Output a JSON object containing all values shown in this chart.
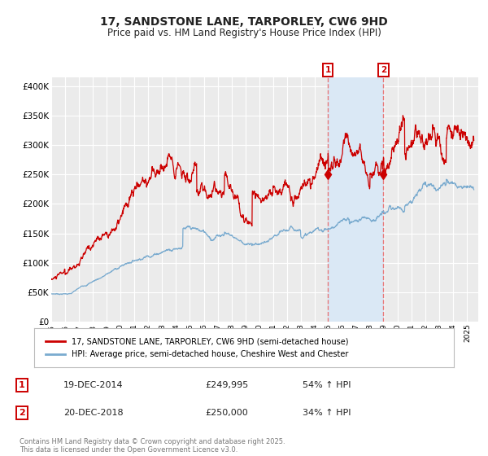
{
  "title": "17, SANDSTONE LANE, TARPORLEY, CW6 9HD",
  "subtitle": "Price paid vs. HM Land Registry's House Price Index (HPI)",
  "title_fontsize": 10,
  "subtitle_fontsize": 8.5,
  "ylabel_ticks": [
    "£0",
    "£50K",
    "£100K",
    "£150K",
    "£200K",
    "£250K",
    "£300K",
    "£350K",
    "£400K"
  ],
  "ytick_values": [
    0,
    50000,
    100000,
    150000,
    200000,
    250000,
    300000,
    350000,
    400000
  ],
  "ylim": [
    0,
    415000
  ],
  "xlim_start": 1995.0,
  "xlim_end": 2025.8,
  "background_color": "#ffffff",
  "plot_bg_color": "#ebebeb",
  "grid_color": "#ffffff",
  "red_line_color": "#cc0000",
  "blue_line_color": "#7aabcf",
  "sale1_date_num": 2014.96,
  "sale1_price": 249995,
  "sale2_date_num": 2018.96,
  "sale2_price": 250000,
  "sale1_date_str": "19-DEC-2014",
  "sale1_price_str": "£249,995",
  "sale1_hpi_str": "54% ↑ HPI",
  "sale2_date_str": "20-DEC-2018",
  "sale2_price_str": "£250,000",
  "sale2_hpi_str": "34% ↑ HPI",
  "legend1_label": "17, SANDSTONE LANE, TARPORLEY, CW6 9HD (semi-detached house)",
  "legend2_label": "HPI: Average price, semi-detached house, Cheshire West and Chester",
  "footnote": "Contains HM Land Registry data © Crown copyright and database right 2025.\nThis data is licensed under the Open Government Licence v3.0.",
  "highlight_fill_color": "#dae8f5",
  "dashed_line_color": "#e87878",
  "marker_color": "#cc0000",
  "marker_size": 6,
  "label_box_color": "#cc0000",
  "xtick_labels": [
    "1995",
    "1996",
    "1997",
    "1998",
    "1999",
    "2000",
    "2001",
    "2002",
    "2003",
    "2004",
    "2005",
    "2006",
    "2007",
    "2008",
    "2009",
    "2010",
    "2011",
    "2012",
    "2013",
    "2014",
    "2015",
    "2016",
    "2017",
    "2018",
    "2019",
    "2020",
    "2021",
    "2022",
    "2023",
    "2024",
    "2025"
  ]
}
